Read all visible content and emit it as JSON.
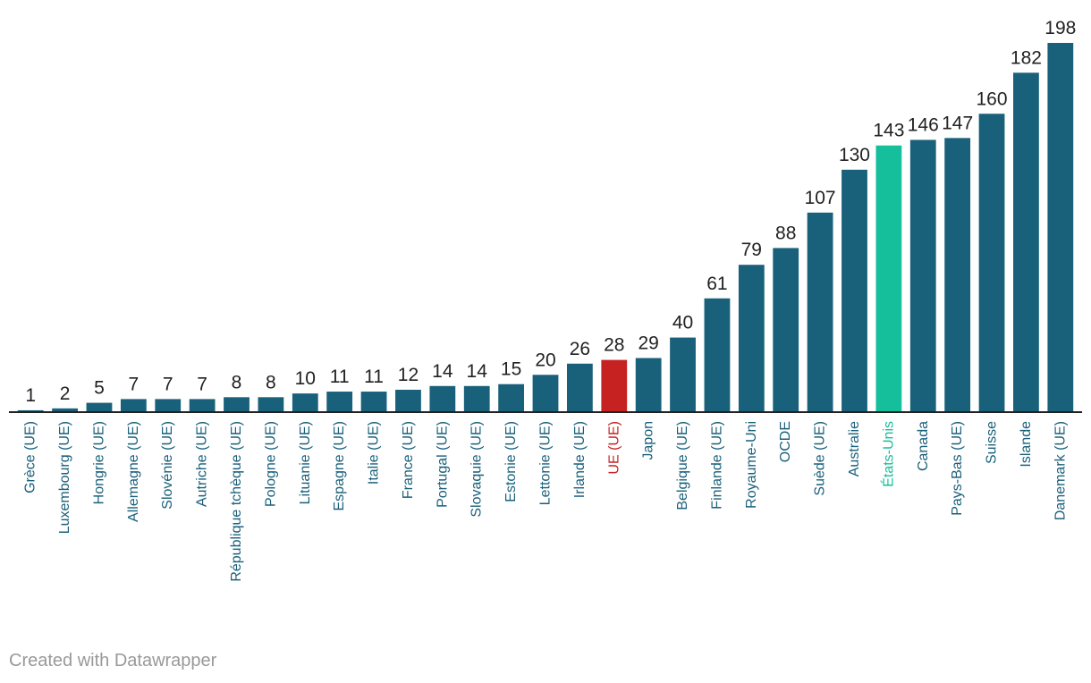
{
  "chart_data": {
    "type": "bar",
    "title": "",
    "xlabel": "",
    "ylabel": "",
    "ylim": [
      0,
      198
    ],
    "grid": false,
    "legend": "none",
    "categories": [
      "Grèce (UE)",
      "Luxembourg (UE)",
      "Hongrie (UE)",
      "Allemagne (UE)",
      "Slovénie (UE)",
      "Autriche (UE)",
      "République tchèque (UE)",
      "Pologne (UE)",
      "Lituanie (UE)",
      "Espagne (UE)",
      "Italie (UE)",
      "France (UE)",
      "Portugal (UE)",
      "Slovaquie (UE)",
      "Estonie (UE)",
      "Lettonie (UE)",
      "Irlande (UE)",
      "UE (UE)",
      "Japon",
      "Belgique (UE)",
      "Finlande (UE)",
      "Royaume-Uni",
      "OCDE",
      "Suède (UE)",
      "Australie",
      "États-Unis",
      "Canada",
      "Pays-Bas (UE)",
      "Suisse",
      "Islande",
      "Danemark (UE)"
    ],
    "values": [
      1,
      2,
      5,
      7,
      7,
      7,
      8,
      8,
      10,
      11,
      11,
      12,
      14,
      14,
      15,
      20,
      26,
      28,
      29,
      40,
      61,
      79,
      88,
      107,
      130,
      143,
      146,
      147,
      160,
      182,
      198
    ],
    "highlights": {
      "UE (UE)": "#c62222",
      "États-Unis": "#15bf9b"
    }
  },
  "colors": {
    "bar": "#19607a",
    "label": "#19607a",
    "eu": "#c62222",
    "us": "#15bf9b",
    "axis": "#222222",
    "credit": "#999999"
  },
  "credit": "Created with Datawrapper"
}
